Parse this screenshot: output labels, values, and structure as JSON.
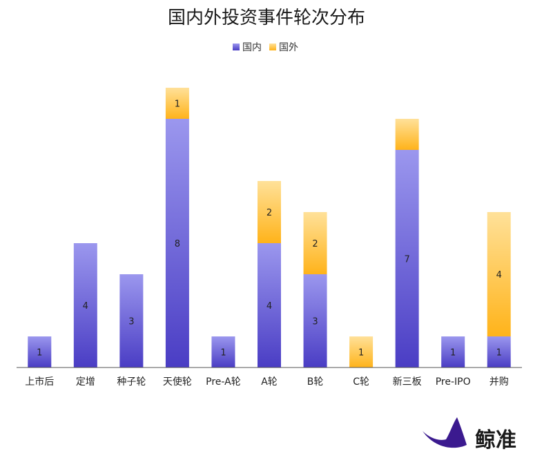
{
  "chart_data": {
    "type": "bar",
    "stacked": true,
    "title": "国内外投资事件轮次分布",
    "categories": [
      "上市后",
      "定增",
      "种子轮",
      "天使轮",
      "Pre-A轮",
      "A轮",
      "B轮",
      "C轮",
      "新三板",
      "Pre-IPO",
      "并购"
    ],
    "series": [
      {
        "name": "国内",
        "values": [
          1,
          4,
          3,
          8,
          1,
          4,
          3,
          0,
          7,
          1,
          1
        ],
        "show_labels": [
          true,
          true,
          true,
          true,
          true,
          true,
          true,
          false,
          true,
          true,
          true
        ],
        "color_top": "#9B97EE",
        "color_bottom": "#4A3DC4"
      },
      {
        "name": "国外",
        "values": [
          0,
          0,
          0,
          1,
          0,
          2,
          2,
          1,
          1,
          0,
          4
        ],
        "show_labels": [
          false,
          false,
          false,
          true,
          false,
          true,
          true,
          true,
          false,
          false,
          true
        ],
        "color_top": "#FFE199",
        "color_bottom": "#FFB31A"
      }
    ],
    "ylim": [
      0,
      9
    ],
    "grid": false,
    "legend_position": "top"
  },
  "brand": {
    "name": "鲸准",
    "color": "#3B1A8F"
  }
}
